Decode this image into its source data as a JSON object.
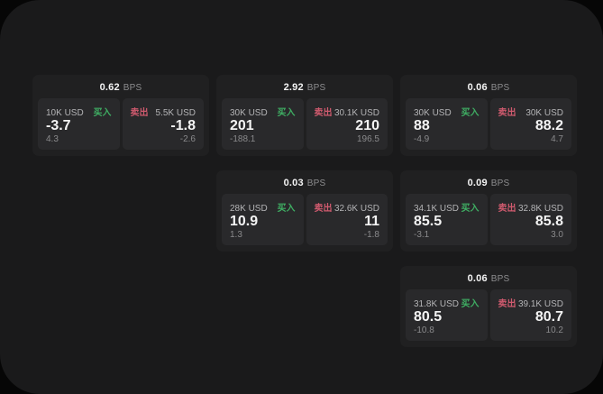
{
  "colors": {
    "page_bg": "#060606",
    "panel_bg": "#1a1a1b",
    "card_bg": "#202021",
    "subcard_bg": "#29292b",
    "text_primary": "#f4f4f4",
    "text_size_label": "#b4b4b6",
    "text_muted": "#8a8a8c",
    "buy_green": "#3fae63",
    "sell_red": "#cf5a6e"
  },
  "labels": {
    "bps": "BPS",
    "buy": "买入",
    "sell": "卖出"
  },
  "cards": [
    {
      "bps": "0.62",
      "buy": {
        "size": "10K USD",
        "value": "-3.7",
        "sub": "4.3"
      },
      "sell": {
        "size": "5.5K USD",
        "value": "-1.8",
        "sub": "-2.6"
      }
    },
    {
      "bps": "2.92",
      "buy": {
        "size": "30K USD",
        "value": "201",
        "sub": "-188.1"
      },
      "sell": {
        "size": "30.1K USD",
        "value": "210",
        "sub": "196.5"
      }
    },
    {
      "bps": "0.06",
      "buy": {
        "size": "30K USD",
        "value": "88",
        "sub": "-4.9"
      },
      "sell": {
        "size": "30K USD",
        "value": "88.2",
        "sub": "4.7"
      }
    },
    {
      "bps": "0.03",
      "buy": {
        "size": "28K USD",
        "value": "10.9",
        "sub": "1.3"
      },
      "sell": {
        "size": "32.6K USD",
        "value": "11",
        "sub": "-1.8"
      }
    },
    {
      "bps": "0.09",
      "buy": {
        "size": "34.1K USD",
        "value": "85.5",
        "sub": "-3.1"
      },
      "sell": {
        "size": "32.8K USD",
        "value": "85.8",
        "sub": "3.0"
      }
    },
    {
      "bps": "0.06",
      "buy": {
        "size": "31.8K USD",
        "value": "80.5",
        "sub": "-10.8"
      },
      "sell": {
        "size": "39.1K USD",
        "value": "80.7",
        "sub": "10.2"
      }
    }
  ]
}
